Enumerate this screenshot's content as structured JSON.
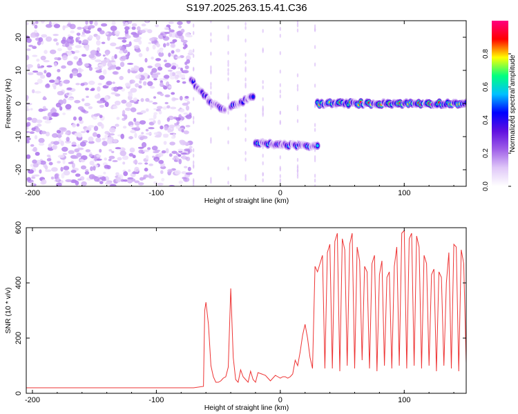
{
  "title": "S197.2025.263.15.41.C36",
  "chart_data": [
    {
      "type": "heatmap",
      "name": "spectrogram",
      "xlabel": "Height of straight line (km)",
      "ylabel": "Frequency (Hz)",
      "xlim": [
        -205,
        150
      ],
      "ylim": [
        -25,
        25
      ],
      "xticks": [
        -200,
        -100,
        0,
        100
      ],
      "yticks": [
        -20,
        -10,
        0,
        10,
        20
      ],
      "colorbar": {
        "label": "Normalized spectral amplitude",
        "ticks": [
          0.0,
          0.2,
          0.4,
          0.6,
          0.8
        ],
        "tick_labels": [
          "0.0",
          "0.2",
          "0.4",
          "0.6",
          "0.8"
        ],
        "range": [
          0,
          1
        ],
        "colormap": [
          "#ffffff",
          "#e0c8f8",
          "#a060e8",
          "#6010e0",
          "#0000ff",
          "#00c0ff",
          "#00ff80",
          "#ffff00",
          "#ff0000",
          "#ff0080"
        ]
      },
      "regions": [
        {
          "kind": "noise",
          "x": [
            -205,
            -72
          ],
          "freq": [
            -25,
            25
          ],
          "amplitude": 0.15
        },
        {
          "kind": "track",
          "x": [
            -72,
            -58
          ],
          "freq_start": 7,
          "freq_end": 1,
          "amplitude": 0.4
        },
        {
          "kind": "track",
          "x": [
            -58,
            -45
          ],
          "freq_start": 1,
          "freq_end": -2,
          "amplitude": 0.4
        },
        {
          "kind": "track",
          "x": [
            -40,
            -22
          ],
          "freq_start": -1,
          "freq_end": 2,
          "amplitude": 0.45
        },
        {
          "kind": "track",
          "x": [
            -20,
            30
          ],
          "freq_start": -12,
          "freq_end": -13,
          "amplitude": 0.5
        },
        {
          "kind": "track",
          "x": [
            30,
            150
          ],
          "freq_start": 0,
          "freq_end": 0,
          "amplitude": 0.8
        }
      ]
    },
    {
      "type": "line",
      "name": "snr",
      "xlabel": "Height of straight line (km)",
      "ylabel": "SNR (10 * v/v)",
      "xlim": [
        -205,
        150
      ],
      "ylim": [
        0,
        600
      ],
      "xticks": [
        -200,
        -100,
        0,
        100
      ],
      "yticks": [
        0,
        200,
        400,
        600
      ],
      "color": "#ee3333",
      "x": [
        -205,
        -180,
        -160,
        -140,
        -120,
        -100,
        -90,
        -80,
        -70,
        -62,
        -61,
        -60,
        -58,
        -56,
        -54,
        -52,
        -50,
        -48,
        -46,
        -44,
        -42,
        -40,
        -38,
        -36,
        -34,
        -32,
        -30,
        -28,
        -26,
        -24,
        -22,
        -20,
        -18,
        -15,
        -12,
        -10,
        -8,
        -6,
        -4,
        -2,
        0,
        2,
        4,
        6,
        8,
        10,
        12,
        14,
        16,
        18,
        20,
        22,
        24,
        26,
        28,
        30,
        32,
        34,
        36,
        38,
        40,
        42,
        44,
        46,
        48,
        50,
        52,
        54,
        56,
        58,
        60,
        62,
        64,
        66,
        68,
        70,
        72,
        74,
        76,
        78,
        80,
        82,
        84,
        86,
        88,
        90,
        92,
        94,
        96,
        98,
        100,
        102,
        104,
        106,
        108,
        110,
        112,
        114,
        116,
        118,
        120,
        122,
        124,
        126,
        128,
        130,
        132,
        134,
        136,
        138,
        140,
        142,
        144,
        146,
        148,
        150
      ],
      "y": [
        20,
        20,
        20,
        20,
        20,
        20,
        20,
        20,
        20,
        25,
        300,
        330,
        250,
        100,
        60,
        40,
        40,
        45,
        55,
        60,
        95,
        380,
        130,
        50,
        40,
        85,
        60,
        50,
        40,
        80,
        50,
        40,
        75,
        70,
        65,
        55,
        45,
        55,
        65,
        60,
        55,
        60,
        60,
        55,
        60,
        70,
        120,
        100,
        150,
        210,
        250,
        200,
        130,
        90,
        460,
        440,
        470,
        500,
        90,
        510,
        540,
        90,
        550,
        580,
        80,
        560,
        520,
        100,
        540,
        580,
        90,
        530,
        480,
        120,
        460,
        440,
        90,
        470,
        500,
        80,
        430,
        480,
        100,
        420,
        440,
        90,
        460,
        530,
        100,
        580,
        590,
        90,
        560,
        580,
        100,
        570,
        530,
        90,
        500,
        470,
        100,
        430,
        450,
        80,
        440,
        420,
        100,
        400,
        510,
        90,
        540,
        530,
        80,
        520,
        470,
        110
      ]
    }
  ]
}
